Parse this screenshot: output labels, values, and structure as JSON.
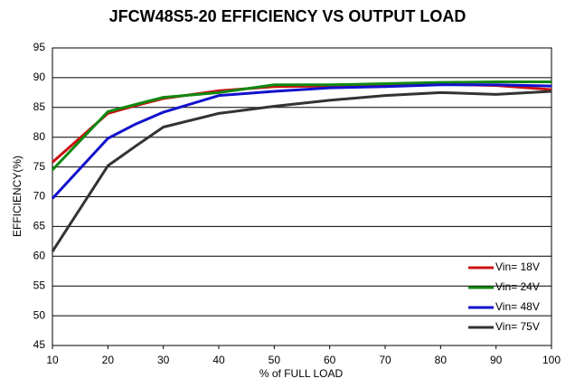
{
  "chart_data": {
    "type": "line",
    "title": "JFCW48S5-20 EFFICIENCY VS OUTPUT LOAD",
    "x_label": "% of FULL LOAD",
    "y_label": "EFFICIENCY(%)",
    "x": [
      10,
      20,
      25,
      30,
      40,
      50,
      60,
      70,
      80,
      90,
      100
    ],
    "series": [
      {
        "name": "Vin= 18V",
        "color": "#cc1111",
        "values": [
          75.8,
          84,
          85.3,
          86.5,
          87.8,
          88.5,
          88.6,
          88.7,
          88.9,
          88.7,
          88.0
        ]
      },
      {
        "name": "Vin= 24V",
        "color": "#118811",
        "values": [
          74.5,
          84.3,
          85.5,
          86.7,
          87.5,
          88.8,
          88.8,
          89,
          89.2,
          89.3,
          89.3
        ]
      },
      {
        "name": "Vin= 48V",
        "color": "#1111cc",
        "values": [
          69.7,
          79.8,
          82.2,
          84.2,
          87,
          87.7,
          88.3,
          88.5,
          88.8,
          88.8,
          88.6
        ]
      },
      {
        "name": "Vin= 75V",
        "color": "#333333",
        "values": [
          60.8,
          75.2,
          78.5,
          81.7,
          84,
          85.2,
          86.2,
          87,
          87.5,
          87.2,
          87.7
        ]
      }
    ],
    "xlim": [
      10,
      100
    ],
    "xticks": [
      10,
      20,
      30,
      40,
      50,
      60,
      70,
      80,
      90,
      100
    ],
    "ylim": [
      45,
      95
    ],
    "yticks": [
      45,
      50,
      55,
      60,
      65,
      70,
      75,
      80,
      85,
      90,
      95
    ],
    "grid": true,
    "legend": "lower right"
  }
}
